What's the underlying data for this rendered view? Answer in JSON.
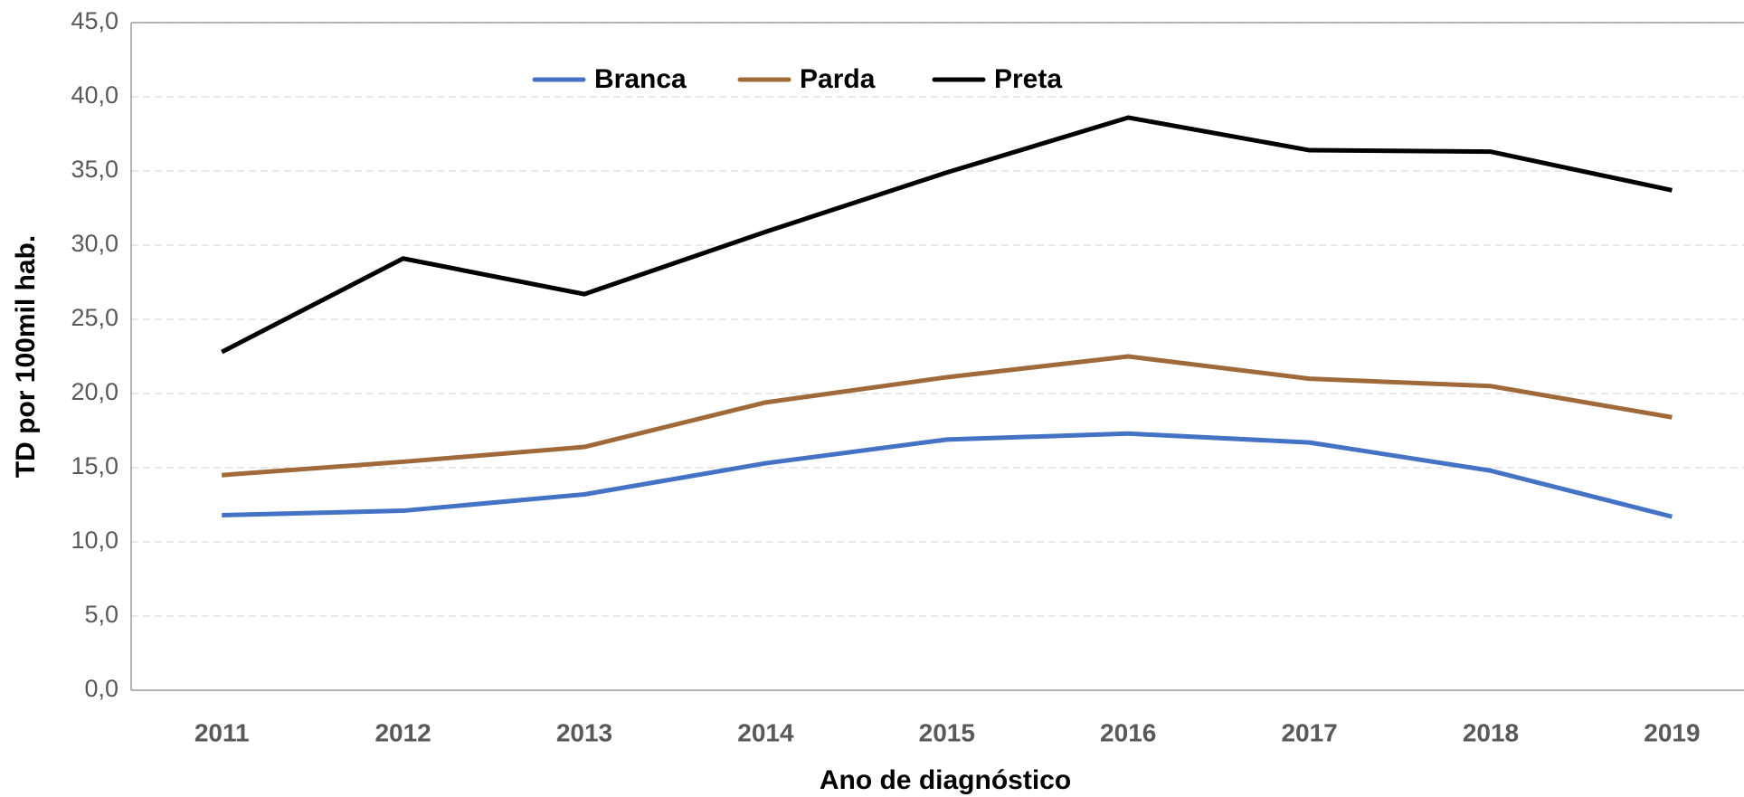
{
  "chart_data": {
    "type": "line",
    "xlabel": "Ano de diagnóstico",
    "ylabel": "TD por 100mil hab.",
    "categories": [
      "2011",
      "2012",
      "2013",
      "2014",
      "2015",
      "2016",
      "2017",
      "2018",
      "2019"
    ],
    "series": [
      {
        "name": "Branca",
        "color": "#4472c4",
        "values": [
          11.8,
          12.1,
          13.2,
          15.3,
          16.9,
          17.3,
          16.7,
          14.8,
          11.7
        ]
      },
      {
        "name": "Parda",
        "color": "#a0693a",
        "values": [
          14.5,
          15.4,
          16.4,
          19.4,
          21.1,
          22.5,
          21.0,
          20.5,
          18.4
        ]
      },
      {
        "name": "Preta",
        "color": "#000000",
        "values": [
          22.8,
          29.1,
          26.7,
          30.9,
          34.9,
          38.6,
          36.4,
          36.3,
          33.7
        ]
      }
    ],
    "ylim": [
      0,
      45
    ],
    "yticks": [
      {
        "value": 0,
        "label": "0,0"
      },
      {
        "value": 5,
        "label": "5,0"
      },
      {
        "value": 10,
        "label": "10,0"
      },
      {
        "value": 15,
        "label": "15,0"
      },
      {
        "value": 20,
        "label": "20,0"
      },
      {
        "value": 25,
        "label": "25,0"
      },
      {
        "value": 30,
        "label": "30,0"
      },
      {
        "value": 35,
        "label": "35,0"
      },
      {
        "value": 40,
        "label": "40,0"
      },
      {
        "value": 45,
        "label": "45,0"
      }
    ],
    "grid": true,
    "legend": "top"
  }
}
